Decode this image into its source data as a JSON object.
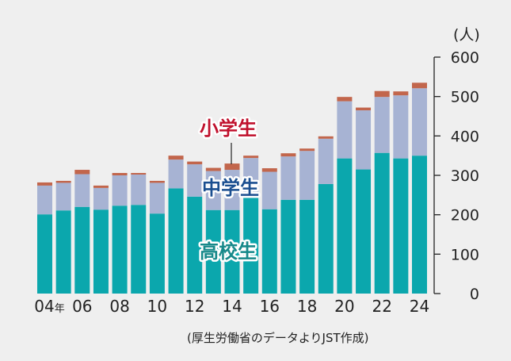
{
  "chart_data": {
    "type": "bar",
    "stacked": true,
    "title": "",
    "ylabel": "(人)",
    "xlabel": "",
    "ylim": [
      0,
      600
    ],
    "yticks": [
      0,
      100,
      200,
      300,
      400,
      500,
      600
    ],
    "axis_position": "right",
    "categories": [
      "2004",
      "2005",
      "2006",
      "2007",
      "2008",
      "2009",
      "2010",
      "2011",
      "2012",
      "2013",
      "2014",
      "2015",
      "2016",
      "2017",
      "2018",
      "2019",
      "2020",
      "2021",
      "2022",
      "2023",
      "2024"
    ],
    "xtick_labels": [
      {
        "index": 0,
        "label": "04",
        "suffix": "年"
      },
      {
        "index": 2,
        "label": "06"
      },
      {
        "index": 4,
        "label": "08"
      },
      {
        "index": 6,
        "label": "10"
      },
      {
        "index": 8,
        "label": "12"
      },
      {
        "index": 10,
        "label": "14"
      },
      {
        "index": 12,
        "label": "16"
      },
      {
        "index": 14,
        "label": "18"
      },
      {
        "index": 16,
        "label": "20"
      },
      {
        "index": 18,
        "label": "22"
      },
      {
        "index": 20,
        "label": "24"
      }
    ],
    "series": [
      {
        "name": "高校生",
        "color": "#0ba7ad",
        "values": [
          201,
          211,
          220,
          213,
          223,
          225,
          203,
          267,
          246,
          212,
          212,
          243,
          214,
          238,
          238,
          278,
          343,
          315,
          357,
          343,
          350
        ]
      },
      {
        "name": "中学生",
        "color": "#a7b3d3",
        "values": [
          73,
          70,
          83,
          55,
          77,
          77,
          78,
          73,
          82,
          99,
          102,
          101,
          95,
          110,
          124,
          115,
          145,
          150,
          142,
          160,
          171
        ]
      },
      {
        "name": "小学生",
        "color": "#c2664c",
        "values": [
          8,
          5,
          11,
          6,
          6,
          4,
          5,
          10,
          7,
          8,
          16,
          6,
          9,
          8,
          6,
          6,
          11,
          7,
          15,
          10,
          14
        ]
      }
    ],
    "legend_labels": [
      {
        "text": "小学生",
        "color": "#c0112d"
      },
      {
        "text": "中学生",
        "color": "#1b4f90"
      },
      {
        "text": "高校生",
        "color": "#17898a"
      }
    ],
    "source": "(厚生労働省のデータよりJST作成)"
  }
}
